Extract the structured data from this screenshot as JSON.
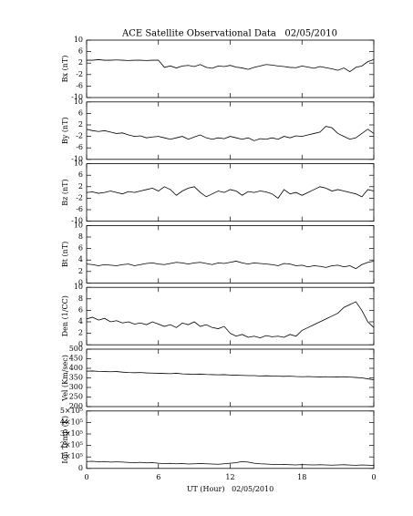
{
  "chart_data": [
    {
      "type": "line",
      "title": "ACE Satellite Observational Data   02/05/2010",
      "ylabel": "Bx (nT)",
      "color": "#000000",
      "x": [
        0,
        0.5,
        1,
        1.5,
        2,
        2.5,
        3,
        3.5,
        4,
        4.5,
        5,
        5.5,
        6,
        6.5,
        7,
        7.5,
        8,
        8.5,
        9,
        9.5,
        10,
        10.5,
        11,
        11.5,
        12,
        12.5,
        13,
        13.5,
        14,
        14.5,
        15,
        15.5,
        16,
        16.5,
        17,
        17.5,
        18,
        18.5,
        19,
        19.5,
        20,
        20.5,
        21,
        21.5,
        22,
        22.5,
        23,
        23.5,
        24
      ],
      "values": [
        3,
        3,
        3.2,
        3,
        3,
        3.1,
        3,
        2.9,
        3,
        3,
        2.9,
        3,
        3,
        0.5,
        1,
        0.3,
        1,
        1.2,
        0.8,
        1.5,
        0.5,
        0.2,
        1,
        0.8,
        1.2,
        0.6,
        0.3,
        -0.2,
        0.5,
        1,
        1.5,
        1.3,
        1,
        0.8,
        0.5,
        0.4,
        1,
        0.6,
        0.2,
        0.8,
        0.4,
        0,
        -0.5,
        0.3,
        -1,
        0.5,
        1,
        2.5,
        3.2
      ],
      "xlim": [
        0,
        24
      ],
      "ylim": [
        -10,
        10
      ],
      "yticks": [
        -10,
        -6,
        -2,
        2,
        6,
        10
      ]
    },
    {
      "type": "line",
      "ylabel": "By (nT)",
      "color": "#000000",
      "x": [
        0,
        0.5,
        1,
        1.5,
        2,
        2.5,
        3,
        3.5,
        4,
        4.5,
        5,
        5.5,
        6,
        6.5,
        7,
        7.5,
        8,
        8.5,
        9,
        9.5,
        10,
        10.5,
        11,
        11.5,
        12,
        12.5,
        13,
        13.5,
        14,
        14.5,
        15,
        15.5,
        16,
        16.5,
        17,
        17.5,
        18,
        18.5,
        19,
        19.5,
        20,
        20.5,
        21,
        21.5,
        22,
        22.5,
        23,
        23.5,
        24
      ],
      "values": [
        0.5,
        0,
        -0.3,
        0,
        -0.5,
        -1,
        -0.8,
        -1.5,
        -2,
        -1.8,
        -2.5,
        -2.2,
        -2,
        -2.5,
        -3,
        -2.5,
        -2,
        -3,
        -2.2,
        -1.5,
        -2.5,
        -3,
        -2.5,
        -2.8,
        -2,
        -2.5,
        -3,
        -2.5,
        -3.5,
        -2.8,
        -3,
        -2.5,
        -3,
        -2,
        -2.5,
        -1.8,
        -2,
        -1.5,
        -1,
        -0.5,
        1.5,
        1,
        -1,
        -2,
        -3,
        -2.5,
        -1,
        0.5,
        -1
      ],
      "xlim": [
        0,
        24
      ],
      "ylim": [
        -10,
        10
      ],
      "yticks": [
        -10,
        -6,
        -2,
        2,
        6,
        10
      ]
    },
    {
      "type": "line",
      "ylabel": "Bz (nT)",
      "color": "#000000",
      "x": [
        0,
        0.5,
        1,
        1.5,
        2,
        2.5,
        3,
        3.5,
        4,
        4.5,
        5,
        5.5,
        6,
        6.5,
        7,
        7.5,
        8,
        8.5,
        9,
        9.5,
        10,
        10.5,
        11,
        11.5,
        12,
        12.5,
        13,
        13.5,
        14,
        14.5,
        15,
        15.5,
        16,
        16.5,
        17,
        17.5,
        18,
        18.5,
        19,
        19.5,
        20,
        20.5,
        21,
        21.5,
        22,
        22.5,
        23,
        23.5,
        24
      ],
      "values": [
        0,
        0.2,
        -0.3,
        0,
        0.5,
        0,
        -0.5,
        0.3,
        0,
        0.5,
        1,
        1.5,
        0.5,
        2,
        1,
        -1,
        0.5,
        1.5,
        2,
        0,
        -1.5,
        -0.5,
        0.5,
        0,
        1,
        0.5,
        -1,
        0.3,
        0,
        0.5,
        0.2,
        -0.5,
        -2,
        1,
        -0.5,
        0,
        -1,
        0,
        1,
        2,
        1.5,
        0.5,
        1,
        0.5,
        0,
        -0.5,
        -1.5,
        1,
        0.5
      ],
      "xlim": [
        0,
        24
      ],
      "ylim": [
        -10,
        10
      ],
      "yticks": [
        -10,
        -6,
        -2,
        2,
        6,
        10
      ]
    },
    {
      "type": "line",
      "ylabel": "Bt (nT)",
      "color": "#000000",
      "x": [
        0,
        0.5,
        1,
        1.5,
        2,
        2.5,
        3,
        3.5,
        4,
        4.5,
        5,
        5.5,
        6,
        6.5,
        7,
        7.5,
        8,
        8.5,
        9,
        9.5,
        10,
        10.5,
        11,
        11.5,
        12,
        12.5,
        13,
        13.5,
        14,
        14.5,
        15,
        15.5,
        16,
        16.5,
        17,
        17.5,
        18,
        18.5,
        19,
        19.5,
        20,
        20.5,
        21,
        21.5,
        22,
        22.5,
        23,
        23.5,
        24
      ],
      "values": [
        3.3,
        3.2,
        3,
        3.2,
        3.1,
        3,
        3.2,
        3.3,
        3,
        3.2,
        3.4,
        3.5,
        3.3,
        3.2,
        3.4,
        3.6,
        3.5,
        3.3,
        3.5,
        3.6,
        3.4,
        3.2,
        3.5,
        3.4,
        3.6,
        3.8,
        3.5,
        3.3,
        3.5,
        3.4,
        3.3,
        3.2,
        3,
        3.4,
        3.3,
        3,
        3.1,
        2.8,
        3,
        2.9,
        2.7,
        3,
        3.1,
        2.8,
        3,
        2.5,
        3.2,
        3.6,
        3.8
      ],
      "xlim": [
        0,
        24
      ],
      "ylim": [
        0,
        10
      ],
      "yticks": [
        0,
        2,
        4,
        6,
        8,
        10
      ]
    },
    {
      "type": "line",
      "ylabel": "Den (1/CC)",
      "color": "#000000",
      "x": [
        0,
        0.5,
        1,
        1.5,
        2,
        2.5,
        3,
        3.5,
        4,
        4.5,
        5,
        5.5,
        6,
        6.5,
        7,
        7.5,
        8,
        8.5,
        9,
        9.5,
        10,
        10.5,
        11,
        11.5,
        12,
        12.5,
        13,
        13.5,
        14,
        14.5,
        15,
        15.5,
        16,
        16.5,
        17,
        17.5,
        18,
        18.5,
        19,
        19.5,
        20,
        20.5,
        21,
        21.5,
        22,
        22.5,
        23,
        23.5,
        24
      ],
      "values": [
        4.5,
        4.8,
        4.3,
        4.6,
        4,
        4.2,
        3.8,
        4,
        3.6,
        3.8,
        3.5,
        4,
        3.6,
        3.2,
        3.5,
        3,
        3.8,
        3.5,
        4,
        3.2,
        3.5,
        3,
        2.8,
        3.2,
        2,
        1.5,
        1.8,
        1.3,
        1.5,
        1.2,
        1.6,
        1.4,
        1.5,
        1.3,
        1.8,
        1.5,
        2.5,
        3,
        3.5,
        4,
        4.5,
        5,
        5.5,
        6.5,
        7,
        7.5,
        6,
        4,
        3
      ],
      "xlim": [
        0,
        24
      ],
      "ylim": [
        0,
        10
      ],
      "yticks": [
        0,
        2,
        4,
        6,
        8,
        10
      ]
    },
    {
      "type": "line",
      "ylabel": "Vel (Km/sec)",
      "color": "#000000",
      "x": [
        0,
        0.5,
        1,
        1.5,
        2,
        2.5,
        3,
        3.5,
        4,
        4.5,
        5,
        5.5,
        6,
        6.5,
        7,
        7.5,
        8,
        8.5,
        9,
        9.5,
        10,
        10.5,
        11,
        11.5,
        12,
        12.5,
        13,
        13.5,
        14,
        14.5,
        15,
        15.5,
        16,
        16.5,
        17,
        17.5,
        18,
        18.5,
        19,
        19.5,
        20,
        20.5,
        21,
        21.5,
        22,
        22.5,
        23,
        23.5,
        24
      ],
      "values": [
        385,
        386,
        384,
        383,
        382,
        383,
        380,
        378,
        377,
        378,
        376,
        375,
        374,
        373,
        372,
        374,
        371,
        370,
        369,
        370,
        368,
        367,
        366,
        367,
        365,
        364,
        363,
        362,
        362,
        360,
        361,
        360,
        359,
        358,
        359,
        357,
        356,
        357,
        356,
        355,
        356,
        354,
        355,
        356,
        354,
        352,
        350,
        345,
        340
      ],
      "xlim": [
        0,
        24
      ],
      "ylim": [
        200,
        500
      ],
      "yticks": [
        200,
        250,
        300,
        350,
        400,
        450,
        500
      ]
    },
    {
      "type": "line",
      "ylabel": "Ion Temp (K)",
      "xlabel": "UT (Hour)   02/05/2010",
      "color": "#000000",
      "x": [
        0,
        0.5,
        1,
        1.5,
        2,
        2.5,
        3,
        3.5,
        4,
        4.5,
        5,
        5.5,
        6,
        6.5,
        7,
        7.5,
        8,
        8.5,
        9,
        9.5,
        10,
        10.5,
        11,
        11.5,
        12,
        12.5,
        13,
        13.5,
        14,
        14.5,
        15,
        15.5,
        16,
        16.5,
        17,
        17.5,
        18,
        18.5,
        19,
        19.5,
        20,
        20.5,
        21,
        21.5,
        22,
        22.5,
        23,
        23.5,
        24
      ],
      "values": [
        60000,
        62000,
        58000,
        60000,
        55000,
        57000,
        55000,
        52000,
        50000,
        53000,
        48000,
        50000,
        45000,
        42000,
        44000,
        40000,
        42000,
        38000,
        40000,
        42000,
        40000,
        38000,
        36000,
        40000,
        45000,
        50000,
        60000,
        55000,
        45000,
        40000,
        38000,
        35000,
        33000,
        35000,
        32000,
        30000,
        33000,
        31000,
        30000,
        32000,
        30000,
        28000,
        30000,
        32000,
        29000,
        27000,
        30000,
        28000,
        25000
      ],
      "xlim": [
        0,
        24
      ],
      "ylim": [
        0,
        500000
      ],
      "yticks": [
        0,
        {
          "value": 100000,
          "label": "1×10⁵"
        },
        {
          "value": 200000,
          "label": "2×10⁵"
        },
        {
          "value": 300000,
          "label": "3×10⁵"
        },
        {
          "value": 400000,
          "label": "4×10⁵"
        },
        {
          "value": 500000,
          "label": "5×10⁵"
        }
      ],
      "xticks": [
        0,
        6,
        12,
        18,
        {
          "value": 24,
          "label": "0"
        }
      ]
    }
  ]
}
